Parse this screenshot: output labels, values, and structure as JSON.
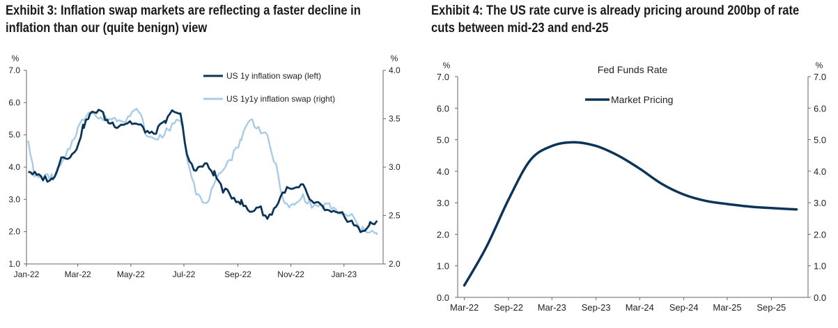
{
  "exhibit3": {
    "title_line1": "Exhibit 3: Inflation swap markets are reflecting a faster decline in",
    "title_line2": "inflation than our (quite benign) view"
  },
  "exhibit4": {
    "title_line1": "Exhibit 4: The US rate curve is already pricing around 200bp of rate",
    "title_line2": "cuts between mid-23 and end-25"
  },
  "chart_data": [
    {
      "type": "line",
      "title": "",
      "x_tick_labels": [
        "Jan-22",
        "Mar-22",
        "May-22",
        "Jul-22",
        "Sep-22",
        "Nov-22",
        "Jan-23"
      ],
      "y_left": {
        "unit": "%",
        "ylim": [
          1.0,
          7.0
        ],
        "ticks": [
          "1.0",
          "2.0",
          "3.0",
          "4.0",
          "5.0",
          "6.0",
          "7.0"
        ]
      },
      "y_right": {
        "unit": "%",
        "ylim": [
          2.0,
          4.0
        ],
        "ticks": [
          "2.0",
          "2.5",
          "3.0",
          "3.5",
          "4.0"
        ]
      },
      "legend_position": "top-right",
      "series": [
        {
          "name": "US 1y inflation swap (left)",
          "axis": "left",
          "color": "#0b3458",
          "x": [
            "2022-01-03",
            "2022-01-15",
            "2022-01-31",
            "2022-02-10",
            "2022-02-25",
            "2022-03-08",
            "2022-03-15",
            "2022-03-25",
            "2022-04-05",
            "2022-04-15",
            "2022-04-30",
            "2022-05-10",
            "2022-05-25",
            "2022-06-10",
            "2022-06-20",
            "2022-06-27",
            "2022-07-05",
            "2022-07-15",
            "2022-07-25",
            "2022-08-05",
            "2022-08-15",
            "2022-08-25",
            "2022-09-05",
            "2022-09-15",
            "2022-09-25",
            "2022-10-05",
            "2022-10-15",
            "2022-10-25",
            "2022-11-05",
            "2022-11-15",
            "2022-11-25",
            "2022-12-05",
            "2022-12-15",
            "2022-12-31",
            "2023-01-10",
            "2023-01-20",
            "2023-01-31",
            "2023-02-08"
          ],
          "values": [
            3.9,
            3.7,
            3.6,
            4.3,
            4.4,
            5.3,
            5.6,
            5.8,
            5.4,
            5.3,
            5.4,
            5.3,
            5.0,
            5.4,
            5.8,
            5.6,
            4.3,
            3.9,
            4.1,
            3.8,
            3.3,
            3.1,
            2.9,
            2.6,
            2.8,
            2.4,
            2.8,
            3.3,
            3.3,
            3.4,
            2.9,
            2.8,
            2.6,
            2.5,
            2.3,
            2.0,
            2.2,
            2.3
          ]
        },
        {
          "name": "US 1y1y inflation swap (right)",
          "axis": "right",
          "color": "#a8cbe6",
          "x": [
            "2022-01-03",
            "2022-01-10",
            "2022-01-20",
            "2022-02-01",
            "2022-02-15",
            "2022-03-01",
            "2022-03-15",
            "2022-03-25",
            "2022-04-10",
            "2022-04-25",
            "2022-05-10",
            "2022-05-20",
            "2022-06-01",
            "2022-06-15",
            "2022-06-27",
            "2022-07-05",
            "2022-07-15",
            "2022-07-25",
            "2022-08-05",
            "2022-08-15",
            "2022-08-25",
            "2022-09-05",
            "2022-09-15",
            "2022-09-25",
            "2022-10-05",
            "2022-10-15",
            "2022-10-25",
            "2022-11-05",
            "2022-11-15",
            "2022-11-25",
            "2022-12-05",
            "2022-12-15",
            "2022-12-31",
            "2023-01-10",
            "2023-01-20",
            "2023-01-31",
            "2023-02-08"
          ],
          "values": [
            3.3,
            2.9,
            2.9,
            2.9,
            3.1,
            3.4,
            3.6,
            3.5,
            3.5,
            3.5,
            3.6,
            3.3,
            3.3,
            3.4,
            3.5,
            3.1,
            2.75,
            2.6,
            2.8,
            3.0,
            3.1,
            3.3,
            3.5,
            3.4,
            3.3,
            3.0,
            2.6,
            2.6,
            2.7,
            2.6,
            2.6,
            2.6,
            2.5,
            2.5,
            2.35,
            2.35,
            2.3
          ]
        }
      ]
    },
    {
      "type": "line",
      "title": "Fed Funds Rate",
      "x_tick_labels": [
        "Mar-22",
        "Sep-22",
        "Mar-23",
        "Sep-23",
        "Mar-24",
        "Sep-24",
        "Mar-25",
        "Sep-25"
      ],
      "y_left": {
        "unit": "%",
        "ylim": [
          0.0,
          7.0
        ],
        "ticks": [
          "0.0",
          "1.0",
          "2.0",
          "3.0",
          "4.0",
          "5.0",
          "6.0",
          "7.0"
        ]
      },
      "y_right": {
        "unit": "%",
        "ylim": [
          0.0,
          7.0
        ],
        "ticks": [
          "0.0",
          "1.0",
          "2.0",
          "3.0",
          "4.0",
          "5.0",
          "6.0",
          "7.0"
        ]
      },
      "legend_position": "top-center",
      "series": [
        {
          "name": "Market Pricing",
          "color": "#0b3458",
          "x": [
            "2022-03-01",
            "2022-06-01",
            "2022-09-01",
            "2022-12-01",
            "2023-03-01",
            "2023-06-01",
            "2023-09-01",
            "2023-12-01",
            "2024-03-01",
            "2024-06-01",
            "2024-09-01",
            "2024-12-01",
            "2025-03-01",
            "2025-06-01",
            "2025-09-01",
            "2025-12-15"
          ],
          "values": [
            0.38,
            1.6,
            3.1,
            4.35,
            4.8,
            4.92,
            4.8,
            4.5,
            4.08,
            3.6,
            3.26,
            3.06,
            2.96,
            2.88,
            2.83,
            2.79
          ]
        }
      ]
    }
  ]
}
